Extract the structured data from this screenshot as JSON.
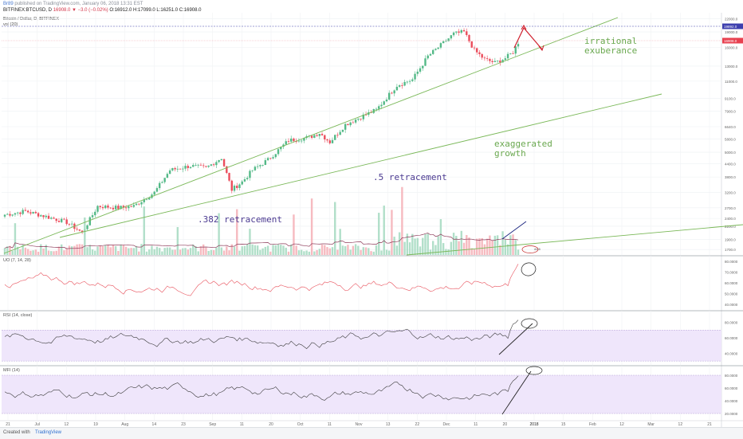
{
  "header": {
    "publisher": "Br89",
    "published_text": "published on TradingView.com, January 06, 2018 13:31 EST",
    "symbol": "BITFINEX:BTCUSD, D",
    "change": "16908.0 ▼ −3.0 (−0.02%)",
    "ohlc": "O:16912.0 H:17099.0 L:16251.0 C:16908.0"
  },
  "chart_data": {
    "type": "candlestick",
    "title": "Bitcoin / Dollar, D, BITFINEX",
    "volume_label": "vol (20)",
    "x_tick_labels": [
      "21",
      "Jul",
      "12",
      "19",
      "Aug",
      "14",
      "23",
      "Sep",
      "11",
      "20",
      "Oct",
      "11",
      "Nov",
      "13",
      "22",
      "Dec",
      "11",
      "20",
      "2018",
      "15",
      "Feb",
      "12",
      "Mar",
      "12",
      "21"
    ],
    "price_axis": {
      "scale": "log",
      "ticks": [
        22000,
        19000,
        16000,
        13000,
        11000,
        9100,
        7900,
        6640,
        5800,
        5000,
        4400,
        3800,
        3200,
        2700,
        2400,
        2200,
        1900,
        1700
      ],
      "last_price_label": "16908.0",
      "marked_level_label": "19892.0"
    },
    "annotations": [
      ".382 retracement",
      ".5 retracement",
      "exaggerated\ngrowth",
      "irrational\nexuberance"
    ],
    "volume_avg_label": "41.5",
    "indicators": [
      {
        "name": "UO (7, 14, 28)",
        "ticks": [
          "80.0000",
          "70.0000",
          "60.0000",
          "50.0000",
          "40.0000"
        ]
      },
      {
        "name": "RSI (14, close)",
        "ticks": [
          "80.0000",
          "60.0000",
          "40.0000"
        ],
        "band": [
          30,
          70
        ]
      },
      {
        "name": "MFI (14)",
        "ticks": [
          "80.0000",
          "60.0000",
          "40.0000",
          "20.0000"
        ],
        "band": [
          20,
          80
        ]
      }
    ],
    "grid": true
  },
  "footer": {
    "created_with": "Created with",
    "brand": "TradingView"
  },
  "colors": {
    "up": "#53b987",
    "down": "#eb4d5c",
    "trend": "#7ab858",
    "uo_line": "#e8505b",
    "band": "#efe6fb",
    "annot_purple": "#4b3a91",
    "annot_green": "#6aa84f",
    "arrow_red": "#d0202e"
  }
}
